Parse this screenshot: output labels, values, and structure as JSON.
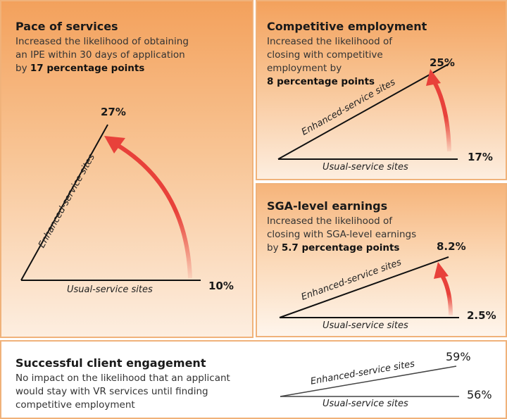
{
  "colors": {
    "arrow": "#e8413a",
    "panel_top": "#f3a15c",
    "panel_bottom": "#fdeee0",
    "border": "#f0b27a"
  },
  "labels": {
    "enhanced": "Enhanced-service sites",
    "usual": "Usual-service sites"
  },
  "pace": {
    "title": "Pace of services",
    "desc1": "Increased the likelihood of obtaining",
    "desc2": "an IPE within 30 days of application",
    "desc3_pre": "by ",
    "desc3_bold": "17 percentage points",
    "enhanced_value": "27%",
    "usual_value": "10%"
  },
  "employment": {
    "title": "Competitive employment",
    "desc1": "Increased the likelihood of",
    "desc2": "closing with competitive",
    "desc3": "employment by",
    "desc4_bold": "8 percentage points",
    "enhanced_value": "25%",
    "usual_value": "17%"
  },
  "sga": {
    "title": "SGA-level earnings",
    "desc1": "Increased the likelihood of",
    "desc2": "closing with SGA-level earnings",
    "desc3_pre": "by ",
    "desc3_bold": "5.7 percentage points",
    "enhanced_value": "8.2%",
    "usual_value": "2.5%"
  },
  "engagement": {
    "title": "Successful client engagement",
    "desc1": "No impact on the likelihood that an applicant",
    "desc2": "would stay with VR services until finding",
    "desc3": "competitive employment",
    "enhanced_value": "59%",
    "usual_value": "56%"
  }
}
